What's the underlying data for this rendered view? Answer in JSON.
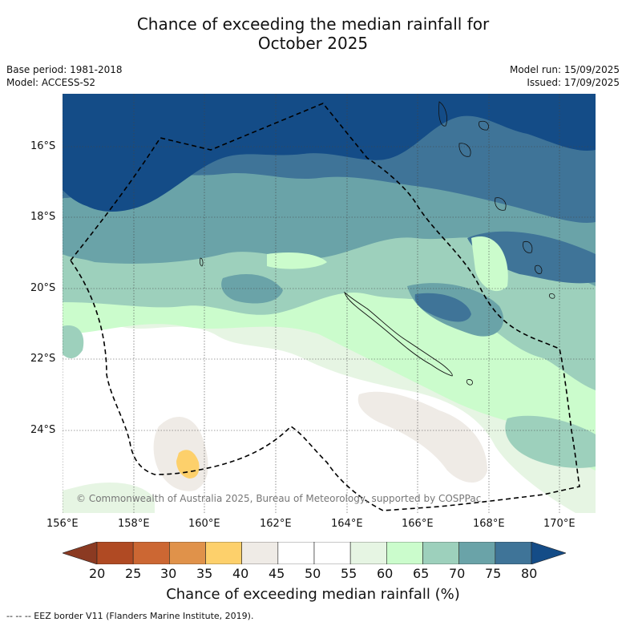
{
  "title": {
    "line1": "Chance of exceeding the median rainfall for",
    "line2": "October 2025"
  },
  "meta": {
    "base_period": "Base period: 1981-2018",
    "model": "Model: ACCESS-S2",
    "model_run": "Model run: 15/09/2025",
    "issued": "Issued: 17/09/2025"
  },
  "map": {
    "copyright": "© Commonwealth of Australia 2025, Bureau of Meteorology, supported by COSPPac",
    "lat_ticks": [
      "16°S",
      "18°S",
      "20°S",
      "22°S",
      "24°S"
    ],
    "lon_ticks": [
      "156°E",
      "158°E",
      "160°E",
      "162°E",
      "164°E",
      "166°E",
      "168°E",
      "170°E"
    ]
  },
  "colorbar": {
    "label": "Chance of exceeding median rainfall (%)",
    "ticks": [
      "20",
      "25",
      "30",
      "35",
      "40",
      "45",
      "50",
      "55",
      "60",
      "65",
      "70",
      "75",
      "80"
    ],
    "colors": [
      "#8b3a22",
      "#b04a23",
      "#cc6733",
      "#e0924a",
      "#fdd06b",
      "#efebe6",
      "#ffffff",
      "#ffffff",
      "#e6f5e3",
      "#cbfccc",
      "#9dd0bc",
      "#6aa3a8",
      "#3f7498",
      "#144c87"
    ]
  },
  "footer": {
    "legend_text": "-- -- -- EEZ border V11 (Flanders Marine Institute, 2019)."
  }
}
